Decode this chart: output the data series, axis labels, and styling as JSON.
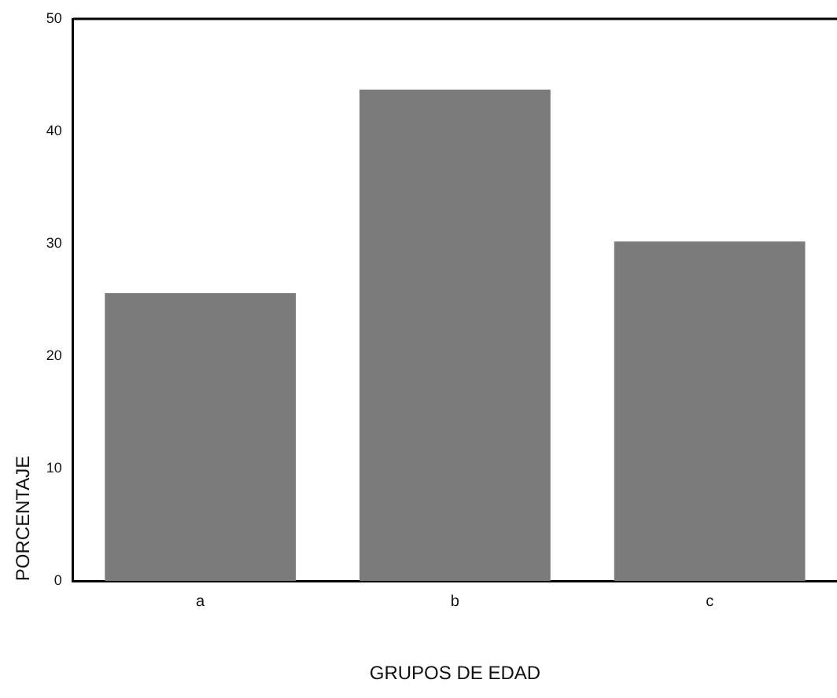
{
  "chart_data": {
    "type": "bar",
    "xlabel": "GRUPOS DE EDAD",
    "ylabel": "PORCENTAJE",
    "categories": [
      "a",
      "b",
      "c"
    ],
    "values": [
      25.6,
      43.7,
      30.2
    ],
    "color": "#7b7b7b",
    "ylim": [
      0,
      50
    ],
    "yticks": [
      0,
      10,
      20,
      30,
      40,
      50
    ],
    "grid": false,
    "legend": false
  }
}
